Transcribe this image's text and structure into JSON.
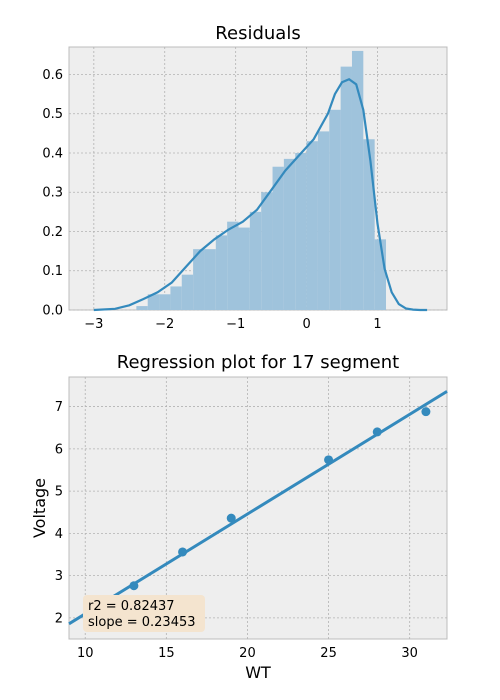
{
  "chart_data": [
    {
      "type": "histogram",
      "title": "Residuals",
      "xlabel": "",
      "ylabel": "",
      "xlim": [
        -3.35,
        1.98
      ],
      "ylim": [
        0,
        0.67
      ],
      "xticks": [
        -3,
        -2,
        -1,
        0,
        1
      ],
      "yticks": [
        0.0,
        0.1,
        0.2,
        0.3,
        0.4,
        0.5,
        0.6
      ],
      "ytick_labels": [
        "0.0",
        "0.1",
        "0.2",
        "0.3",
        "0.4",
        "0.5",
        "0.6"
      ],
      "grid": true,
      "bin_edges": [
        -2.4,
        -2.24,
        -2.08,
        -1.92,
        -1.76,
        -1.6,
        -1.44,
        -1.28,
        -1.12,
        -0.96,
        -0.8,
        -0.64,
        -0.48,
        -0.32,
        -0.16,
        0.0,
        0.16,
        0.32,
        0.48,
        0.64,
        0.8,
        0.96,
        1.12,
        1.28
      ],
      "counts": [
        0.01,
        0.04,
        0.04,
        0.06,
        0.09,
        0.155,
        0.155,
        0.19,
        0.225,
        0.21,
        0.25,
        0.3,
        0.365,
        0.385,
        0.4,
        0.43,
        0.455,
        0.51,
        0.62,
        0.66,
        0.435,
        0.18,
        0.0
      ],
      "kde": {
        "x": [
          -3.0,
          -2.7,
          -2.5,
          -2.3,
          -2.1,
          -1.9,
          -1.7,
          -1.5,
          -1.3,
          -1.1,
          -0.9,
          -0.7,
          -0.5,
          -0.3,
          -0.1,
          0.1,
          0.3,
          0.4,
          0.5,
          0.6,
          0.7,
          0.8,
          0.9,
          1.0,
          1.1,
          1.2,
          1.3,
          1.4,
          1.5,
          1.6,
          1.7
        ],
        "y": [
          0.0,
          0.003,
          0.012,
          0.028,
          0.045,
          0.07,
          0.11,
          0.15,
          0.18,
          0.205,
          0.225,
          0.255,
          0.305,
          0.355,
          0.395,
          0.435,
          0.5,
          0.55,
          0.58,
          0.588,
          0.575,
          0.51,
          0.38,
          0.22,
          0.105,
          0.045,
          0.015,
          0.004,
          0.001,
          0.0,
          0.0
        ]
      },
      "bar_color": "#9fc3dc",
      "line_color": "#348abd"
    },
    {
      "type": "scatter",
      "title": "Regression plot for 17 segment",
      "xlabel": "WT",
      "ylabel": "Voltage",
      "xlim": [
        9.0,
        32.3
      ],
      "ylim": [
        1.5,
        7.7
      ],
      "xticks": [
        10,
        15,
        20,
        25,
        30
      ],
      "yticks": [
        2,
        3,
        4,
        5,
        6,
        7
      ],
      "grid": true,
      "points": {
        "x": [
          13,
          16,
          19,
          25,
          28,
          31
        ],
        "y": [
          2.76,
          3.56,
          4.36,
          5.74,
          6.4,
          6.88
        ],
        "err": [
          0.1,
          0.1,
          0.08,
          0.08,
          0.07,
          0.06
        ]
      },
      "fit_line": {
        "x": [
          9.0,
          32.3
        ],
        "y": [
          1.86,
          7.36
        ]
      },
      "annotation": [
        "r2 = 0.82437",
        "slope = 0.23453"
      ],
      "annotation_bg": "#f4e4cf",
      "point_color": "#348abd"
    }
  ]
}
